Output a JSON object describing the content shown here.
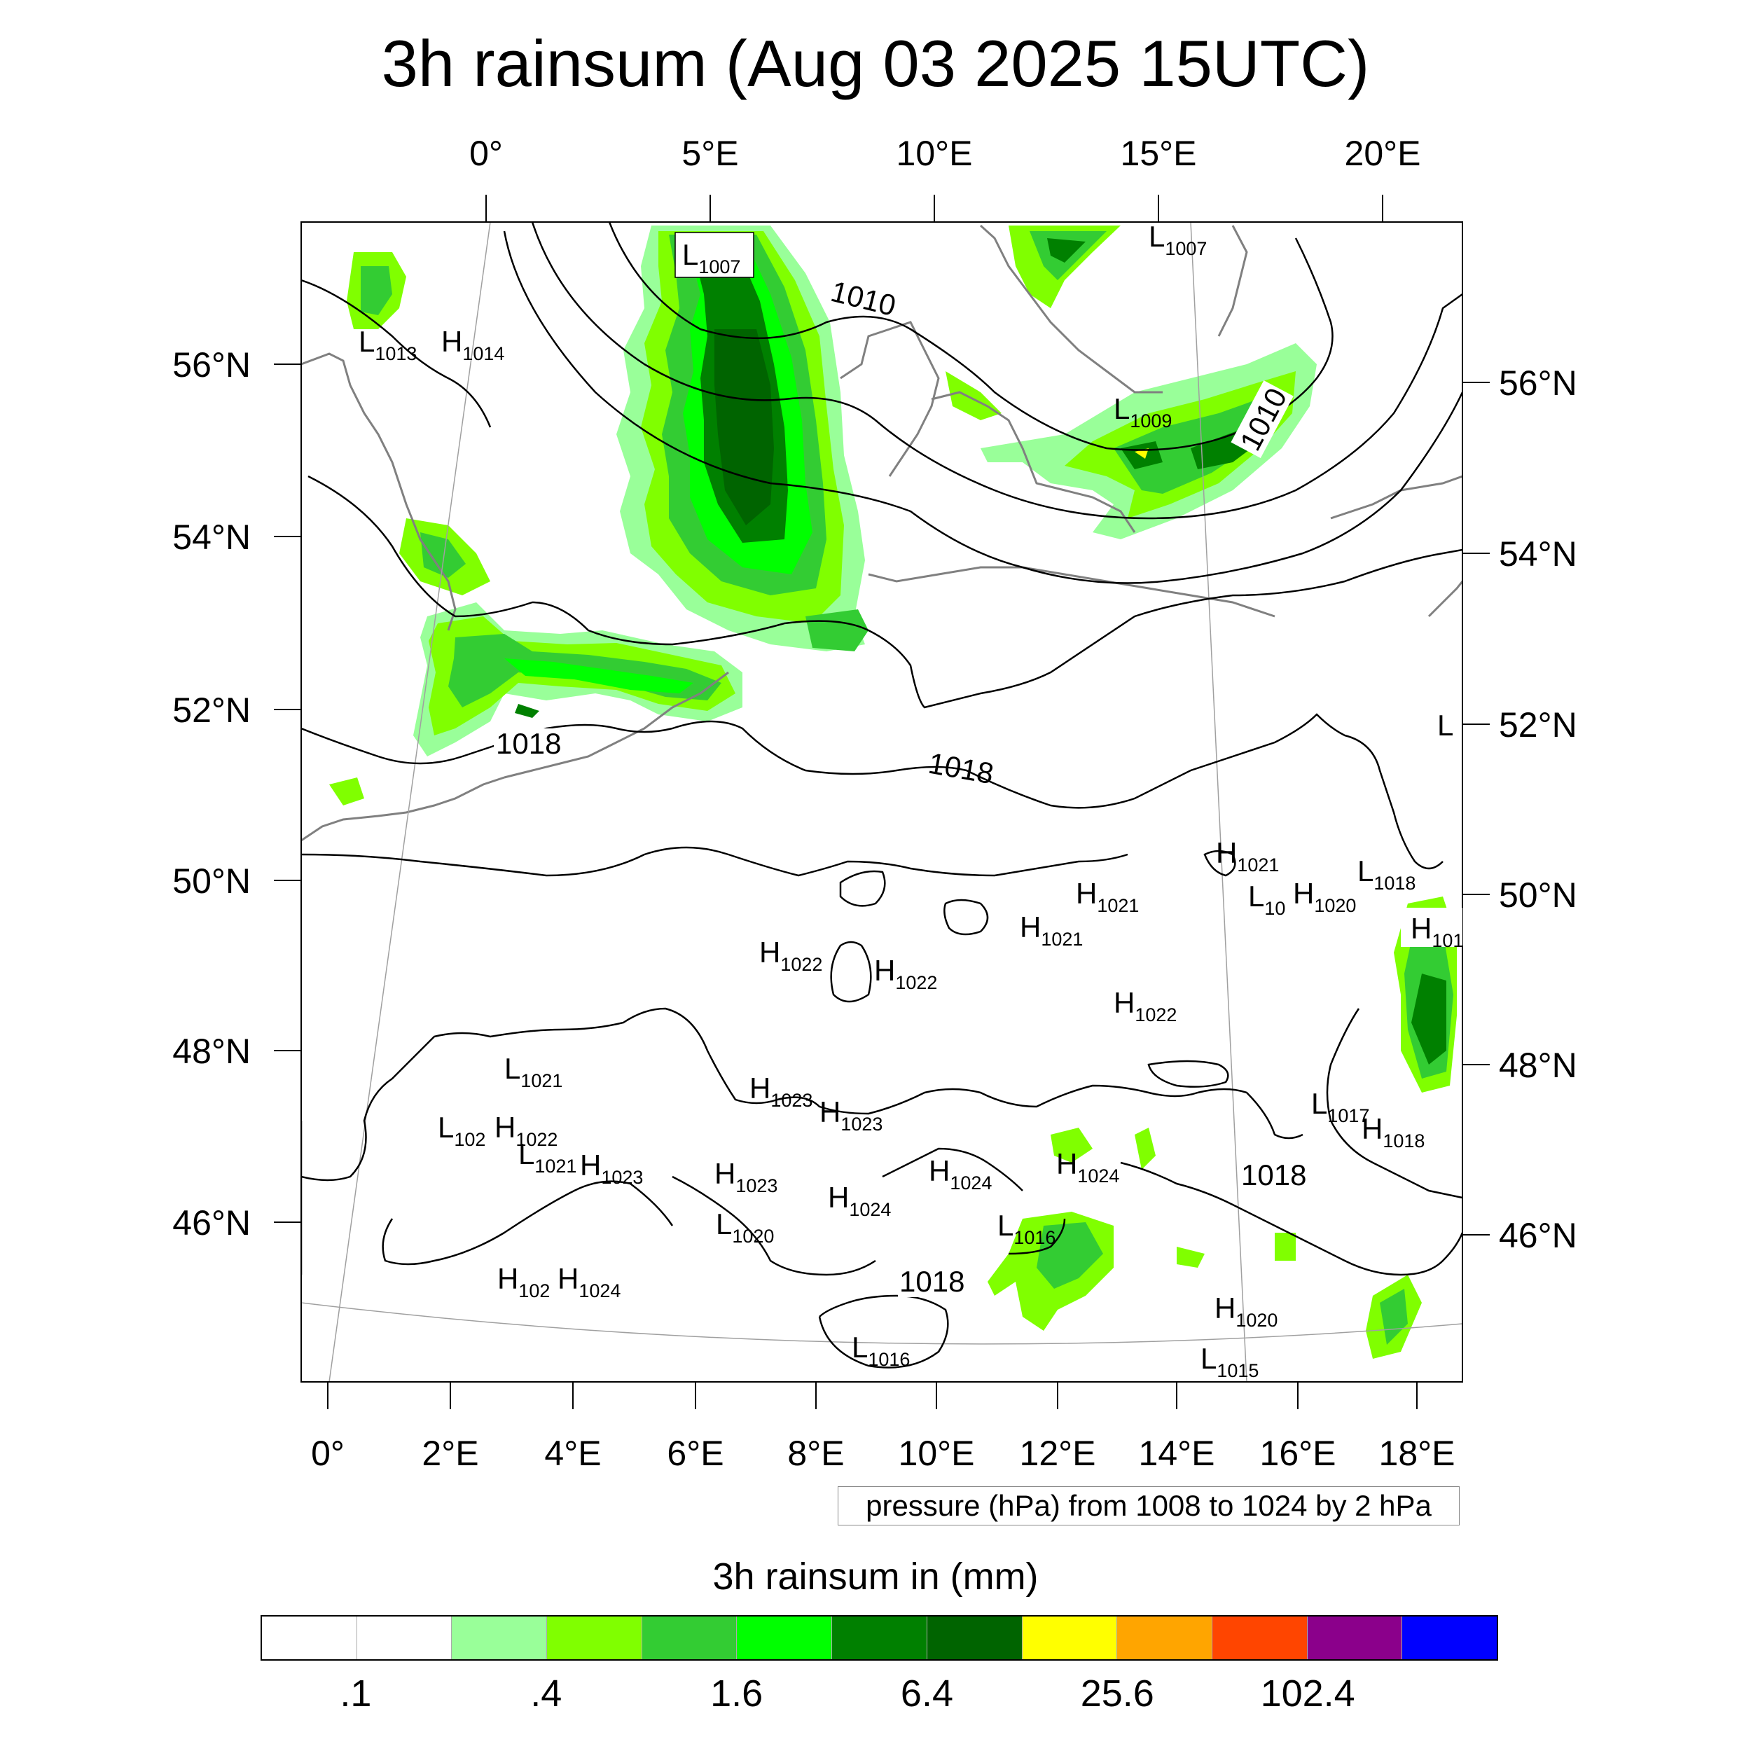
{
  "title": "3h rainsum (Aug 03 2025 15UTC)",
  "top_lon_labels": [
    "0°",
    "5°E",
    "10°E",
    "15°E",
    "20°E"
  ],
  "bottom_lon_labels": [
    "0°",
    "2°E",
    "4°E",
    "6°E",
    "8°E",
    "10°E",
    "12°E",
    "14°E",
    "16°E",
    "18°E"
  ],
  "left_lat_labels": [
    "56°N",
    "54°N",
    "52°N",
    "50°N",
    "48°N",
    "46°N"
  ],
  "right_lat_labels": [
    "56°N",
    "54°N",
    "52°N",
    "50°N",
    "48°N",
    "46°N"
  ],
  "pressure_note": "pressure (hPa) from 1008 to 1024 by 2 hPa",
  "colorbar": {
    "title": "3h rainsum in (mm)",
    "colors": [
      "#ffffff",
      "#ffffff",
      "#99ff99",
      "#80ff00",
      "#33cc33",
      "#00ff00",
      "#008000",
      "#006400",
      "#ffff00",
      "#ffa500",
      "#ff4500",
      "#8b008b",
      "#0000ff"
    ],
    "labels": [
      ".1",
      ".4",
      "1.6",
      "6.4",
      "25.6",
      "102.4"
    ]
  },
  "contour_labels": [
    "1010",
    "1010",
    "1018",
    "1018",
    "1018",
    "1018"
  ],
  "pressure_centers": [
    {
      "type": "L",
      "value": "1007"
    },
    {
      "type": "L",
      "value": "1007"
    },
    {
      "type": "L",
      "value": "1013"
    },
    {
      "type": "H",
      "value": "1014"
    },
    {
      "type": "L",
      "value": "1009"
    },
    {
      "type": "L",
      "value": ""
    },
    {
      "type": "H",
      "value": "1021"
    },
    {
      "type": "L",
      "value": "1018"
    },
    {
      "type": "L",
      "value": "10"
    },
    {
      "type": "H",
      "value": "1020"
    },
    {
      "type": "H",
      "value": "1021"
    },
    {
      "type": "H",
      "value": "1021"
    },
    {
      "type": "H",
      "value": "101"
    },
    {
      "type": "H",
      "value": "1022"
    },
    {
      "type": "H",
      "value": "1022"
    },
    {
      "type": "H",
      "value": "1022"
    },
    {
      "type": "L",
      "value": "1021"
    },
    {
      "type": "H",
      "value": "1023"
    },
    {
      "type": "H",
      "value": "1023"
    },
    {
      "type": "L",
      "value": "102"
    },
    {
      "type": "H",
      "value": "1022"
    },
    {
      "type": "L",
      "value": "1021"
    },
    {
      "type": "H",
      "value": "1023"
    },
    {
      "type": "H",
      "value": "1023"
    },
    {
      "type": "H",
      "value": "1024"
    },
    {
      "type": "H",
      "value": "1024"
    },
    {
      "type": "H",
      "value": "1024"
    },
    {
      "type": "L",
      "value": "1020"
    },
    {
      "type": "L",
      "value": "1016"
    },
    {
      "type": "L",
      "value": "1017"
    },
    {
      "type": "H",
      "value": "1018"
    },
    {
      "type": "H",
      "value": "102"
    },
    {
      "type": "H",
      "value": "1024"
    },
    {
      "type": "L",
      "value": "1016"
    },
    {
      "type": "H",
      "value": "1020"
    },
    {
      "type": "L",
      "value": "1015"
    }
  ]
}
